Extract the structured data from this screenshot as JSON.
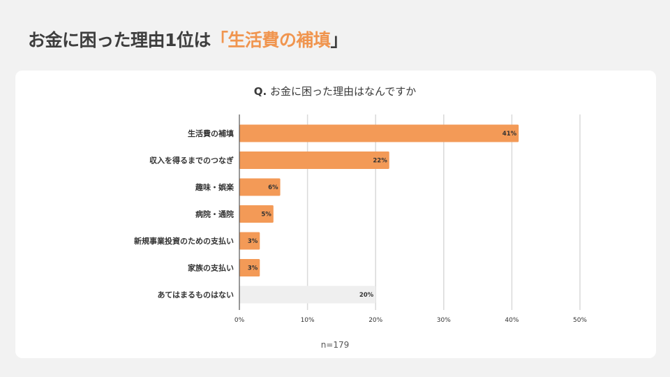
{
  "headline": {
    "prefix": "お金に困った理由1位は",
    "open_bracket": "「",
    "highlight": "生活費の補填",
    "close_bracket": "」"
  },
  "question": {
    "marker": "Q.",
    "text": " お金に困った理由はなんですか"
  },
  "sample": "n=179",
  "colors": {
    "bar": "#f39a57",
    "bar_neutral": "#efefef",
    "accent": "#f0954f"
  },
  "chart_data": {
    "type": "bar",
    "orientation": "horizontal",
    "categories": [
      "生活費の補填",
      "収入を得るまでのつなぎ",
      "趣味・娯楽",
      "病院・通院",
      "新規事業投資のための支払い",
      "家族の支払い",
      "あてはまるものはない"
    ],
    "values": [
      41,
      22,
      6,
      5,
      3,
      3,
      20
    ],
    "value_labels": [
      "41%",
      "22%",
      "6%",
      "5%",
      "3%",
      "3%",
      "20%"
    ],
    "neutral_index": 6,
    "xlim": [
      0,
      50
    ],
    "xticks": [
      0,
      10,
      20,
      30,
      40,
      50
    ],
    "xtick_labels": [
      "0%",
      "10%",
      "20%",
      "30%",
      "40%",
      "50%"
    ],
    "grid": true
  }
}
